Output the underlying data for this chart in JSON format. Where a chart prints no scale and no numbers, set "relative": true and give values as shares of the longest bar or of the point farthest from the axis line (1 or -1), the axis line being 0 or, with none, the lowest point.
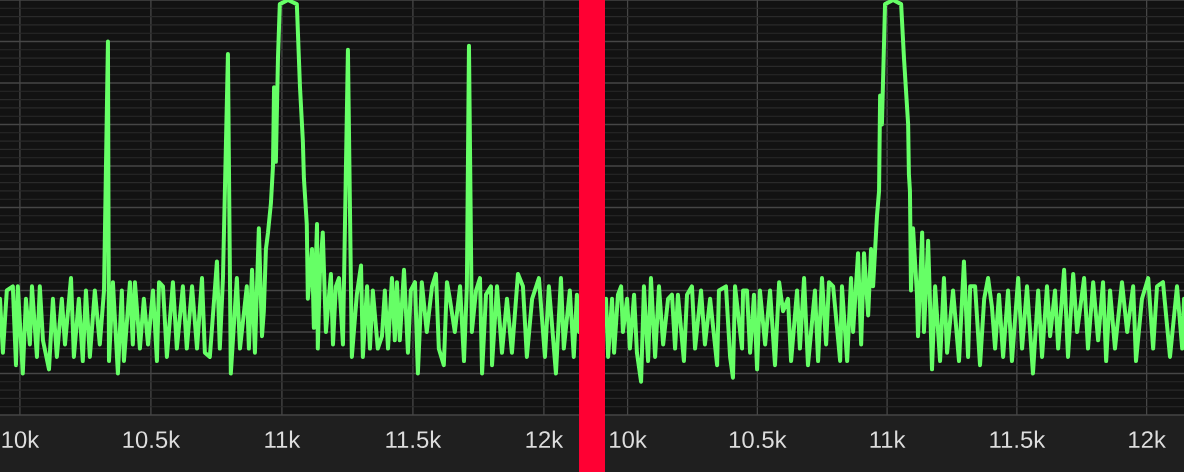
{
  "chart_data": [
    {
      "type": "line",
      "relative": true,
      "color": "#66ff66",
      "grid": true,
      "tick_labels": "x",
      "xlim": [
        9924,
        12134
      ],
      "xticks": [
        {
          "value": 10000,
          "label": "10k"
        },
        {
          "value": 10500,
          "label": "10.5k"
        },
        {
          "value": 11000,
          "label": "11k"
        },
        {
          "value": 11500,
          "label": "11.5k"
        },
        {
          "value": 12000,
          "label": "12k"
        }
      ],
      "x": [
        9924,
        9935,
        9950,
        9973,
        9985,
        9992,
        10011,
        10023,
        10038,
        10046,
        10065,
        10076,
        10088,
        10111,
        10126,
        10141,
        10160,
        10172,
        10195,
        10206,
        10225,
        10240,
        10252,
        10267,
        10286,
        10305,
        10321,
        10336,
        10340,
        10355,
        10374,
        10389,
        10397,
        10420,
        10431,
        10439,
        10458,
        10473,
        10489,
        10508,
        10523,
        10531,
        10546,
        10561,
        10584,
        10599,
        10622,
        10637,
        10657,
        10676,
        10695,
        10706,
        10725,
        10752,
        10763,
        10775,
        10794,
        10805,
        10828,
        10840,
        10866,
        10874,
        10886,
        10897,
        10912,
        10924,
        10931,
        10939,
        10947,
        10958,
        10966,
        10970,
        10977,
        10985,
        10992,
        11023,
        11057,
        11069,
        11080,
        11084,
        11095,
        11099,
        11115,
        11122,
        11134,
        11137,
        11145,
        11156,
        11168,
        11187,
        11195,
        11206,
        11218,
        11233,
        11252,
        11267,
        11286,
        11302,
        11309,
        11325,
        11336,
        11347,
        11366,
        11382,
        11393,
        11405,
        11420,
        11431,
        11439,
        11450,
        11466,
        11481,
        11492,
        11508,
        11519,
        11534,
        11553,
        11573,
        11588,
        11599,
        11618,
        11630,
        11641,
        11660,
        11680,
        11695,
        11706,
        11714,
        11725,
        11741,
        11756,
        11764,
        11779,
        11798,
        11802,
        11821,
        11840,
        11859,
        11878,
        11901,
        11920,
        11935,
        11955,
        11981,
        12004,
        12019,
        12046,
        12065,
        12076,
        12099,
        12114,
        12126,
        12134
      ],
      "values": [
        0.28,
        0.15,
        0.3,
        0.31,
        0.12,
        0.31,
        0.1,
        0.28,
        0.17,
        0.31,
        0.14,
        0.31,
        0.18,
        0.11,
        0.28,
        0.14,
        0.28,
        0.17,
        0.33,
        0.14,
        0.28,
        0.13,
        0.3,
        0.14,
        0.3,
        0.17,
        0.3,
        0.9,
        0.13,
        0.32,
        0.1,
        0.3,
        0.13,
        0.32,
        0.17,
        0.32,
        0.16,
        0.28,
        0.17,
        0.3,
        0.13,
        0.32,
        0.31,
        0.14,
        0.32,
        0.16,
        0.31,
        0.16,
        0.31,
        0.16,
        0.33,
        0.15,
        0.14,
        0.37,
        0.16,
        0.33,
        0.87,
        0.1,
        0.33,
        0.16,
        0.31,
        0.16,
        0.35,
        0.15,
        0.45,
        0.19,
        0.25,
        0.4,
        0.44,
        0.51,
        0.6,
        0.79,
        0.61,
        0.86,
        0.99,
        1,
        0.99,
        0.79,
        0.66,
        0.57,
        0.46,
        0.28,
        0.4,
        0.21,
        0.46,
        0.16,
        0.34,
        0.44,
        0.2,
        0.34,
        0.17,
        0.31,
        0.33,
        0.17,
        0.88,
        0.14,
        0.29,
        0.36,
        0.14,
        0.31,
        0.16,
        0.3,
        0.16,
        0.19,
        0.3,
        0.16,
        0.33,
        0.18,
        0.32,
        0.18,
        0.35,
        0.15,
        0.3,
        0.32,
        0.1,
        0.32,
        0.2,
        0.31,
        0.34,
        0.16,
        0.12,
        0.32,
        0.28,
        0.2,
        0.31,
        0.13,
        0.31,
        0.89,
        0.2,
        0.3,
        0.33,
        0.1,
        0.29,
        0.31,
        0.12,
        0.31,
        0.15,
        0.28,
        0.15,
        0.34,
        0.31,
        0.14,
        0.28,
        0.33,
        0.14,
        0.31,
        0.1,
        0.33,
        0.16,
        0.3,
        0.14,
        0.29,
        0.2
      ]
    },
    {
      "type": "line",
      "relative": true,
      "color": "#66ff66",
      "grid": true,
      "tick_labels": "x",
      "xlim": [
        9913,
        12144
      ],
      "xticks": [
        {
          "value": 10000,
          "label": "10k"
        },
        {
          "value": 10500,
          "label": "10.5k"
        },
        {
          "value": 11000,
          "label": "11k"
        },
        {
          "value": 11500,
          "label": "11.5k"
        },
        {
          "value": 12000,
          "label": "12k"
        }
      ],
      "x": [
        9917,
        9925,
        9940,
        9948,
        9963,
        9975,
        9982,
        9998,
        10009,
        10025,
        10036,
        10052,
        10063,
        10079,
        10090,
        10106,
        10121,
        10137,
        10156,
        10171,
        10183,
        10194,
        10217,
        10229,
        10248,
        10260,
        10283,
        10298,
        10318,
        10345,
        10352,
        10379,
        10395,
        10406,
        10414,
        10441,
        10445,
        10460,
        10472,
        10487,
        10499,
        10510,
        10530,
        10549,
        10568,
        10584,
        10599,
        10618,
        10630,
        10653,
        10664,
        10680,
        10695,
        10722,
        10734,
        10749,
        10765,
        10776,
        10792,
        10819,
        10826,
        10846,
        10861,
        10869,
        10888,
        10900,
        10911,
        10927,
        10938,
        10946,
        10961,
        10969,
        10973,
        10980,
        10992,
        11023,
        11054,
        11065,
        11073,
        11081,
        11084,
        11088,
        11092,
        11100,
        11115,
        11119,
        11135,
        11142,
        11158,
        11173,
        11185,
        11204,
        11219,
        11231,
        11254,
        11277,
        11296,
        11312,
        11320,
        11339,
        11358,
        11374,
        11389,
        11404,
        11416,
        11431,
        11447,
        11466,
        11481,
        11505,
        11520,
        11539,
        11562,
        11582,
        11597,
        11616,
        11628,
        11647,
        11659,
        11682,
        11697,
        11717,
        11732,
        11759,
        11774,
        11794,
        11813,
        11832,
        11844,
        11859,
        11878,
        11905,
        11925,
        11948,
        11959,
        11982,
        12006,
        12025,
        12040,
        12063,
        12090,
        12117,
        12137,
        12144
      ],
      "values": [
        0.28,
        0.14,
        0.28,
        0.15,
        0.29,
        0.31,
        0.2,
        0.28,
        0.16,
        0.29,
        0.15,
        0.08,
        0.31,
        0.13,
        0.33,
        0.14,
        0.31,
        0.17,
        0.28,
        0.29,
        0.16,
        0.29,
        0.13,
        0.29,
        0.31,
        0.16,
        0.3,
        0.17,
        0.28,
        0.12,
        0.3,
        0.31,
        0.14,
        0.09,
        0.31,
        0.16,
        0.3,
        0.3,
        0.15,
        0.29,
        0.11,
        0.3,
        0.17,
        0.3,
        0.12,
        0.32,
        0.25,
        0.28,
        0.13,
        0.3,
        0.16,
        0.33,
        0.12,
        0.3,
        0.13,
        0.33,
        0.17,
        0.32,
        0.31,
        0.13,
        0.31,
        0.13,
        0.33,
        0.2,
        0.39,
        0.17,
        0.39,
        0.24,
        0.4,
        0.31,
        0.48,
        0.54,
        0.77,
        0.7,
        0.99,
        1,
        0.99,
        0.86,
        0.78,
        0.7,
        0.58,
        0.54,
        0.3,
        0.45,
        0.29,
        0.19,
        0.44,
        0.2,
        0.42,
        0.11,
        0.31,
        0.13,
        0.33,
        0.15,
        0.3,
        0.13,
        0.37,
        0.14,
        0.31,
        0.31,
        0.12,
        0.28,
        0.33,
        0.26,
        0.16,
        0.29,
        0.14,
        0.3,
        0.13,
        0.33,
        0.16,
        0.31,
        0.1,
        0.3,
        0.14,
        0.31,
        0.19,
        0.3,
        0.16,
        0.35,
        0.14,
        0.34,
        0.2,
        0.33,
        0.16,
        0.32,
        0.18,
        0.32,
        0.13,
        0.3,
        0.16,
        0.32,
        0.2,
        0.31,
        0.13,
        0.28,
        0.33,
        0.16,
        0.31,
        0.32,
        0.14,
        0.31,
        0.16,
        0.28
      ]
    }
  ]
}
